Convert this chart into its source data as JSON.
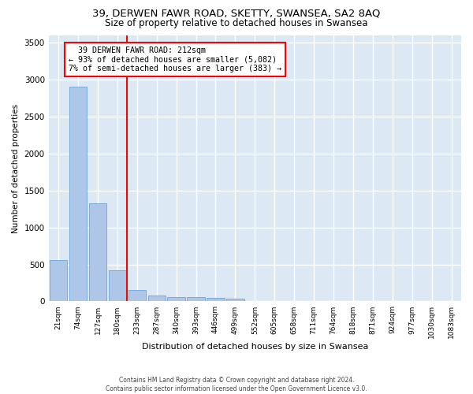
{
  "title_line1": "39, DERWEN FAWR ROAD, SKETTY, SWANSEA, SA2 8AQ",
  "title_line2": "Size of property relative to detached houses in Swansea",
  "xlabel": "Distribution of detached houses by size in Swansea",
  "ylabel": "Number of detached properties",
  "footnote": "Contains HM Land Registry data © Crown copyright and database right 2024.\nContains public sector information licensed under the Open Government Licence v3.0.",
  "bar_labels": [
    "21sqm",
    "74sqm",
    "127sqm",
    "180sqm",
    "233sqm",
    "287sqm",
    "340sqm",
    "393sqm",
    "446sqm",
    "499sqm",
    "552sqm",
    "605sqm",
    "658sqm",
    "711sqm",
    "764sqm",
    "818sqm",
    "871sqm",
    "924sqm",
    "977sqm",
    "1030sqm",
    "1083sqm"
  ],
  "bar_values": [
    560,
    2910,
    1330,
    420,
    155,
    80,
    60,
    55,
    45,
    40,
    0,
    0,
    0,
    0,
    0,
    0,
    0,
    0,
    0,
    0,
    0
  ],
  "bar_color": "#aec6e8",
  "bar_edge_color": "#5b9bd5",
  "vline_x": 3.47,
  "vline_color": "red",
  "annotation_text": "  39 DERWEN FAWR ROAD: 212sqm\n← 93% of detached houses are smaller (5,082)\n7% of semi-detached houses are larger (383) →",
  "annotation_box_color": "white",
  "annotation_box_edge_color": "red",
  "ylim": [
    0,
    3600
  ],
  "yticks": [
    0,
    500,
    1000,
    1500,
    2000,
    2500,
    3000,
    3500
  ],
  "background_color": "#dce9f5",
  "grid_color": "white",
  "title_fontsize": 9.5,
  "subtitle_fontsize": 8.5,
  "footnote_fontsize": 5.5
}
